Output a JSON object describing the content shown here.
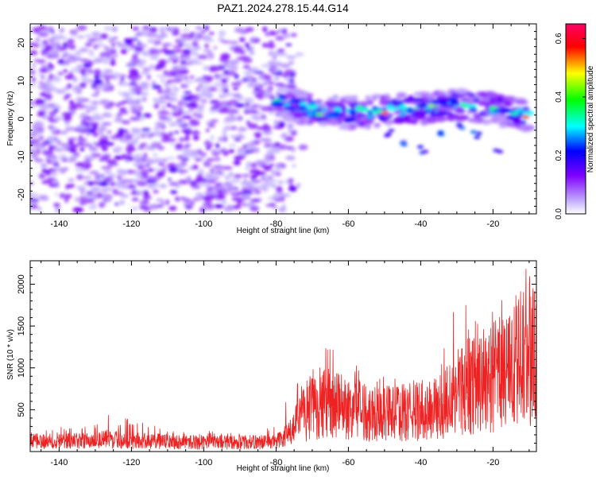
{
  "title": "PAZ1.2024.278.15.44.G14",
  "chart_data": [
    {
      "type": "heatmap",
      "xlabel": "Height of straight line (km)",
      "ylabel": "Frequency (Hz)",
      "xlim": [
        -148,
        -8
      ],
      "ylim": [
        -25,
        25
      ],
      "x_ticks": [
        -140,
        -120,
        -100,
        -80,
        -60,
        -40,
        -20
      ],
      "y_ticks": [
        -20,
        -10,
        0,
        10,
        20
      ],
      "colorbar": {
        "label": "Normalized spectral amplitude",
        "range": [
          0.0,
          0.65
        ],
        "ticks": [
          "0.0",
          "0.2",
          "0.4",
          "0.6"
        ],
        "tick_values": [
          0.0,
          0.2,
          0.4,
          0.6
        ],
        "colormap": [
          "#ffffff",
          "#c9b8ff",
          "#7f00ff",
          "#0000ff",
          "#00ffff",
          "#00ff00",
          "#ffff00",
          "#ff0000",
          "#ff0066"
        ]
      },
      "features": [
        {
          "name": "noise",
          "x_range": [
            -148,
            -75
          ],
          "freq_range": [
            -24,
            24
          ],
          "amplitude": 0.1
        },
        {
          "name": "main-signal",
          "x": [
            -80,
            -75,
            -70,
            -65,
            -60,
            -55,
            -50,
            -45,
            -40,
            -35,
            -30,
            -25,
            -20,
            -15,
            -10
          ],
          "freq": [
            5,
            3.5,
            2.5,
            1.8,
            1.5,
            1.8,
            2.2,
            2.5,
            2.8,
            3.2,
            3.5,
            3.5,
            2.8,
            1.5,
            0.5
          ],
          "amplitude_peak": 0.63
        },
        {
          "name": "secondary-branch",
          "x": [
            -50,
            -45,
            -40,
            -35,
            -30,
            -25,
            -20
          ],
          "freq": [
            -4,
            -6,
            -8,
            -4,
            -2,
            -4,
            -8
          ],
          "amplitude": 0.2
        }
      ]
    },
    {
      "type": "line",
      "xlabel": "Height of straight line (km)",
      "ylabel": "SNR (10 * v/v)",
      "xlim": [
        -148,
        -8
      ],
      "ylim": [
        0,
        2280
      ],
      "x_ticks": [
        -140,
        -120,
        -100,
        -80,
        -60,
        -40,
        -20
      ],
      "y_ticks": [
        500,
        1000,
        1500,
        2000
      ],
      "color": "#ee2222",
      "series": [
        {
          "envelope": [
            {
              "x": -148,
              "mean": 120,
              "max": 250
            },
            {
              "x": -130,
              "mean": 130,
              "max": 350
            },
            {
              "x": -127,
              "mean": 150,
              "max": 460
            },
            {
              "x": -120,
              "mean": 130,
              "max": 380
            },
            {
              "x": -110,
              "mean": 120,
              "max": 270
            },
            {
              "x": -100,
              "mean": 110,
              "max": 250
            },
            {
              "x": -90,
              "mean": 110,
              "max": 230
            },
            {
              "x": -80,
              "mean": 120,
              "max": 300
            },
            {
              "x": -76,
              "mean": 220,
              "max": 750
            },
            {
              "x": -72,
              "mean": 480,
              "max": 950
            },
            {
              "x": -68,
              "mean": 580,
              "max": 1260
            },
            {
              "x": -62,
              "mean": 540,
              "max": 1300
            },
            {
              "x": -55,
              "mean": 470,
              "max": 950
            },
            {
              "x": -45,
              "mean": 460,
              "max": 850
            },
            {
              "x": -35,
              "mean": 500,
              "max": 900
            },
            {
              "x": -31,
              "mean": 700,
              "max": 1900
            },
            {
              "x": -25,
              "mean": 820,
              "max": 1800
            },
            {
              "x": -20,
              "mean": 880,
              "max": 1700
            },
            {
              "x": -15,
              "mean": 980,
              "max": 2000
            },
            {
              "x": -12,
              "mean": 1100,
              "max": 2100
            },
            {
              "x": -10,
              "mean": 1200,
              "max": 2280
            },
            {
              "x": -8,
              "mean": 1300,
              "max": 1750
            }
          ]
        }
      ]
    }
  ]
}
